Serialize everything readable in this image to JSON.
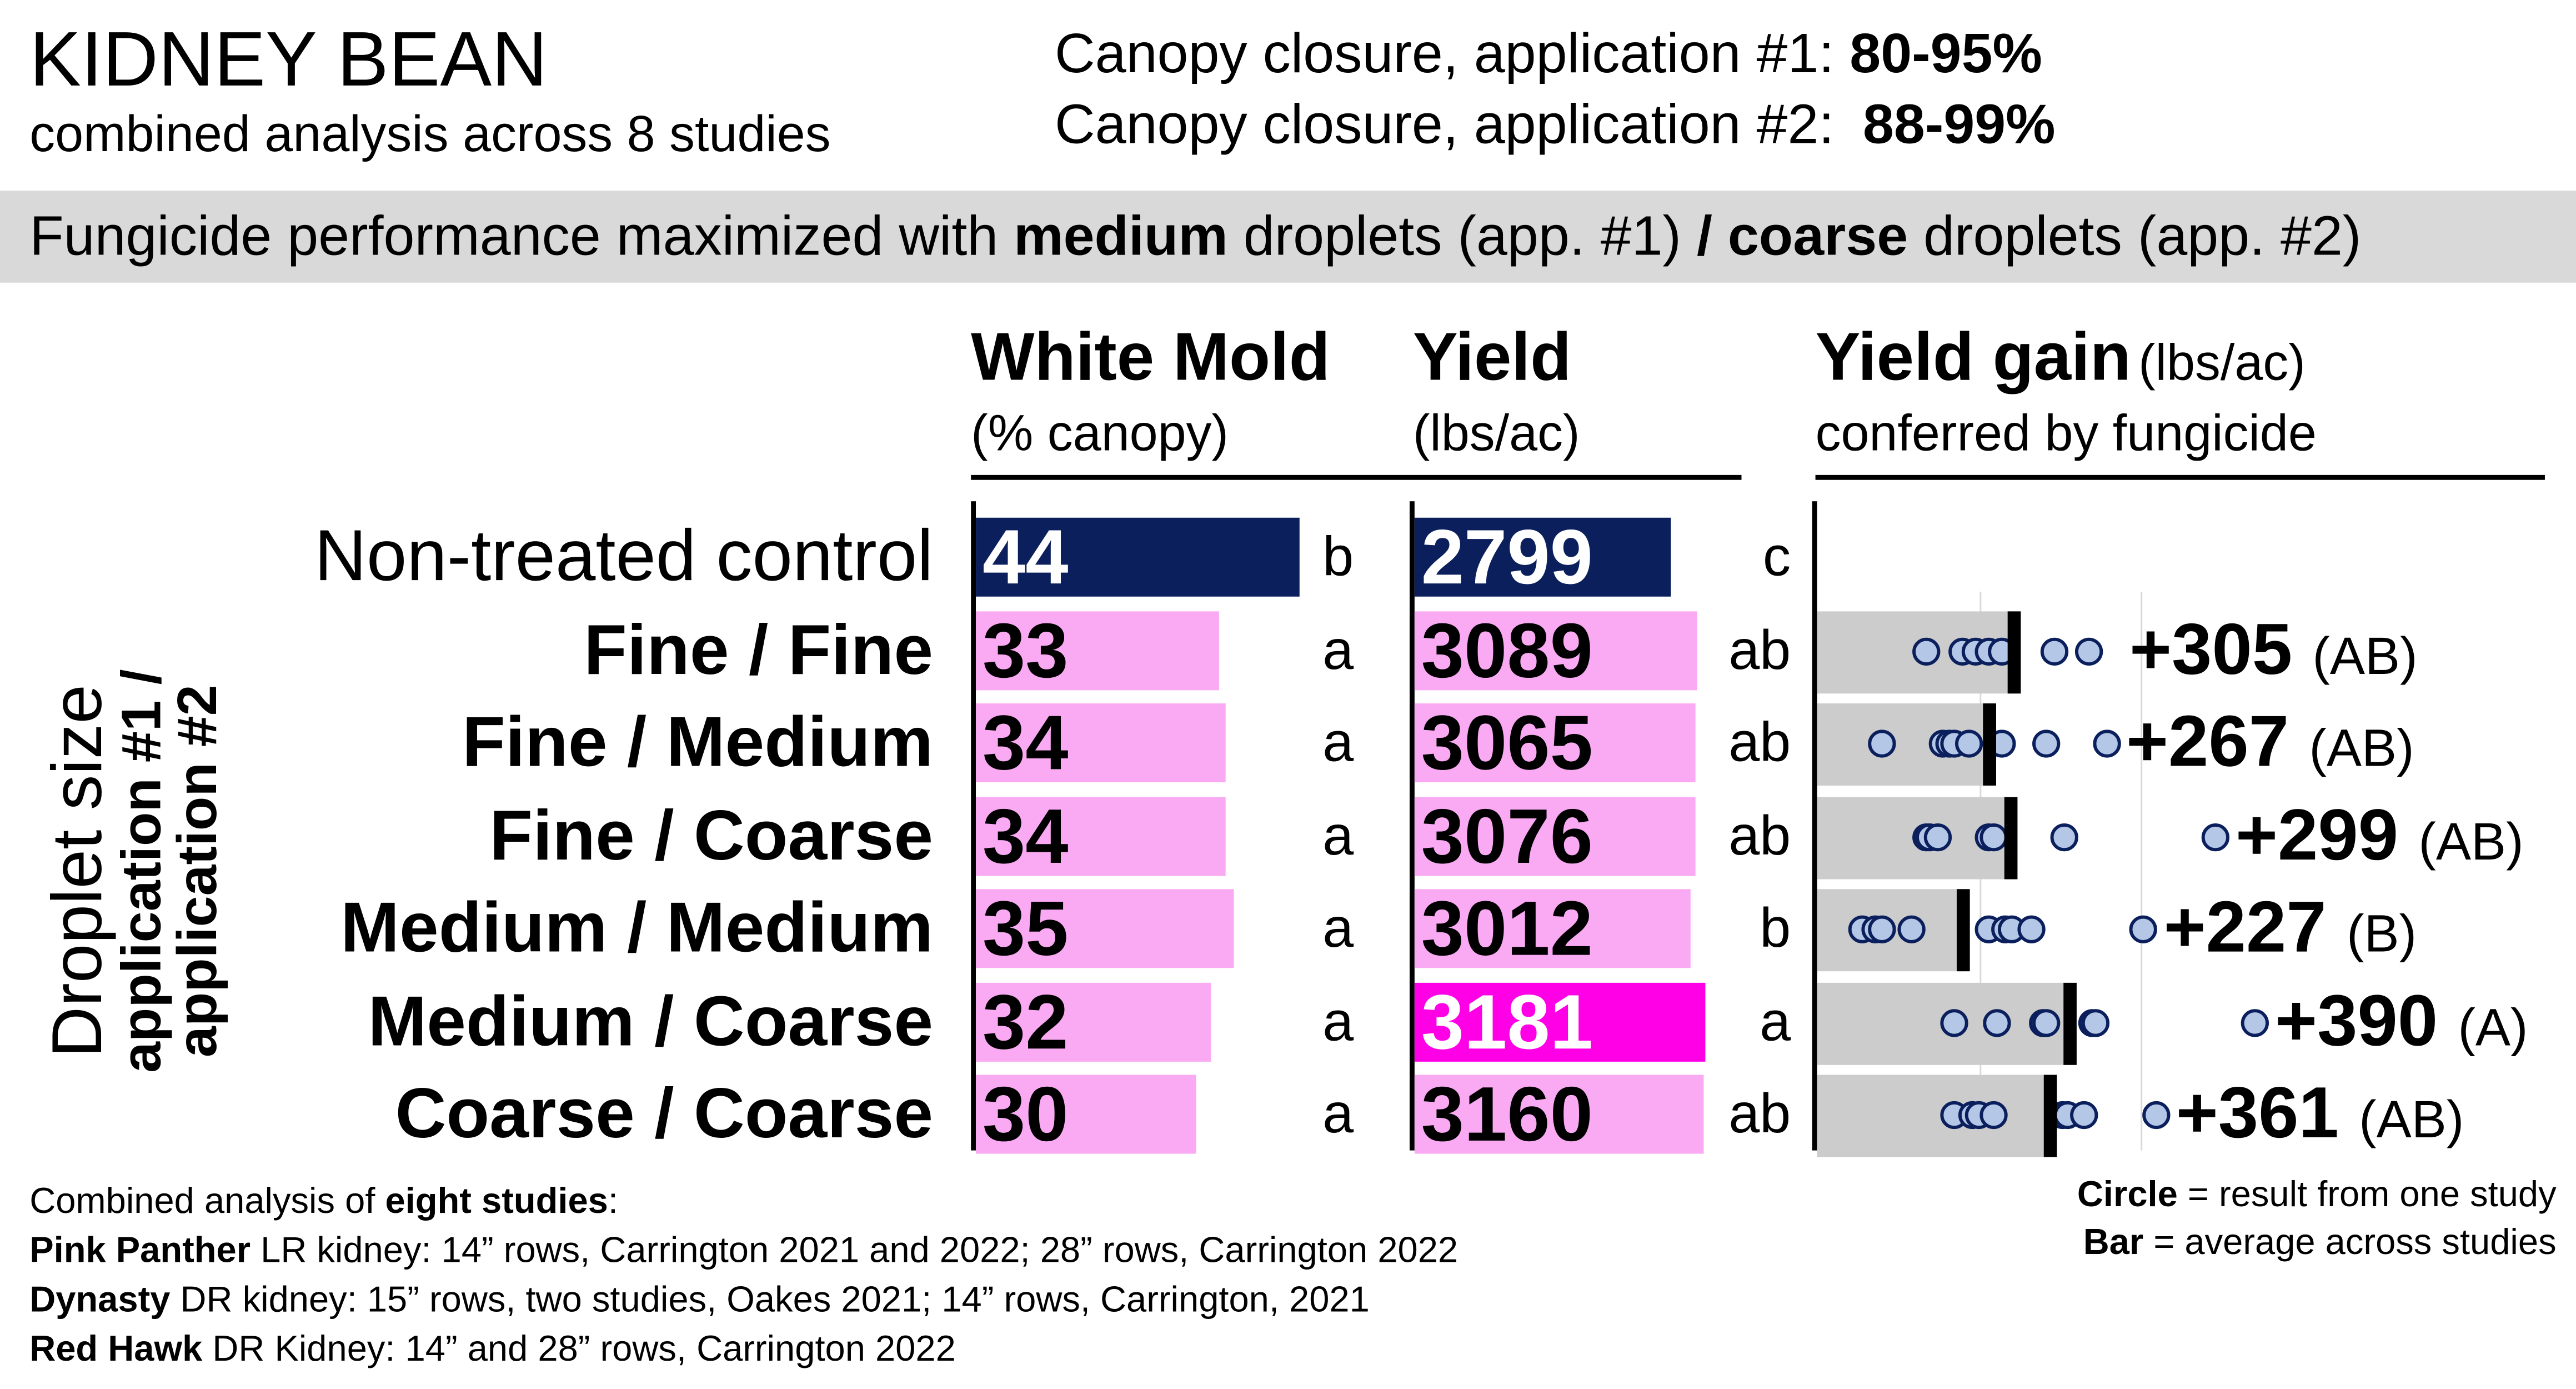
{
  "header": {
    "title": "KIDNEY BEAN",
    "subtitle": "combined analysis across 8 studies",
    "canopy1_label": "Canopy closure, application #1: ",
    "canopy1_value": "80-95%",
    "canopy2_label": "Canopy closure, application #2: ",
    "canopy2_value": "88-99%"
  },
  "banner": {
    "part1": "Fungicide performance maximized with ",
    "bold1": "medium",
    "part2": " droplets (app. #1) ",
    "bold2": "/ coarse",
    "part3": " droplets (app. #2)"
  },
  "colors": {
    "control": "#0b1f5c",
    "treated": "#f9aaf2",
    "best_yield": "#ff00e6",
    "gain_bar": "#cccccc",
    "dot_fill": "#b4c7e7",
    "dot_stroke": "#0a1f5c",
    "banner": "#d9d9d9"
  },
  "y_axis_label": {
    "line1": "Droplet size",
    "line2": "application #1 /",
    "line3": "application #2"
  },
  "chart_data": [
    {
      "type": "bar",
      "title": "White Mold",
      "unit": "(% canopy)",
      "categories": [
        "Non-treated control",
        "Fine / Fine",
        "Fine / Medium",
        "Fine / Coarse",
        "Medium / Medium",
        "Medium / Coarse",
        "Coarse / Coarse"
      ],
      "values": [
        44,
        33,
        34,
        34,
        35,
        32,
        30
      ],
      "letters": [
        "b",
        "a",
        "a",
        "a",
        "a",
        "a",
        "a"
      ]
    },
    {
      "type": "bar",
      "title": "Yield",
      "unit": "(lbs/ac)",
      "categories": [
        "Non-treated control",
        "Fine / Fine",
        "Fine / Medium",
        "Fine / Coarse",
        "Medium / Medium",
        "Medium / Coarse",
        "Coarse / Coarse"
      ],
      "values": [
        2799,
        3089,
        3065,
        3076,
        3012,
        3181,
        3160
      ],
      "letters": [
        "c",
        "ab",
        "ab",
        "ab",
        "b",
        "a",
        "ab"
      ]
    },
    {
      "type": "bar+scatter",
      "title": "Yield gain",
      "unit": "(lbs/ac)",
      "subtitle": "conferred by fungicide",
      "categories": [
        "Fine / Fine",
        "Fine / Medium",
        "Fine / Coarse",
        "Medium / Medium",
        "Medium / Coarse",
        "Coarse / Coarse"
      ],
      "labels": [
        "+305",
        "+267",
        "+299",
        "+227",
        "+390",
        "+361"
      ],
      "groups": [
        "(AB)",
        "(AB)",
        "(AB)",
        "(B)",
        "(A)",
        "(AB)"
      ],
      "values": [
        305,
        267,
        299,
        227,
        390,
        361
      ],
      "studies": [
        [
          170,
          224,
          245,
          266,
          285,
          366,
          420
        ],
        [
          100,
          194,
          205,
          213,
          236,
          286,
          355,
          447
        ],
        [
          168,
          174,
          186,
          265,
          274,
          382,
          616
        ],
        [
          71,
          90,
          101,
          147,
          266,
          290,
          301,
          332,
          505
        ],
        [
          213,
          278,
          350,
          355,
          424,
          430,
          677
        ],
        [
          213,
          240,
          251,
          274,
          380,
          386,
          412,
          524
        ]
      ],
      "gridlines": [
        250,
        500
      ],
      "xlim": [
        0,
        560
      ]
    }
  ],
  "footnotes": [
    {
      "bold": "",
      "pre": "Combined analysis of ",
      "boldend": "eight studies",
      "text": ":"
    },
    {
      "bold": "Pink Panther",
      "text": " LR kidney:  14” rows, Carrington 2021 and 2022; 28” rows, Carrington 2022"
    },
    {
      "bold": "Dynasty",
      "text": " DR kidney:  15” rows, two studies, Oakes 2021; 14” rows, Carrington, 2021"
    },
    {
      "bold": "Red Hawk",
      "text": " DR Kidney:  14” and 28” rows, Carrington 2022"
    }
  ],
  "legend": {
    "circle_bold": "Circle",
    "circle_text": " = result from one study",
    "bar_bold": "Bar",
    "bar_text": " = average across studies"
  }
}
